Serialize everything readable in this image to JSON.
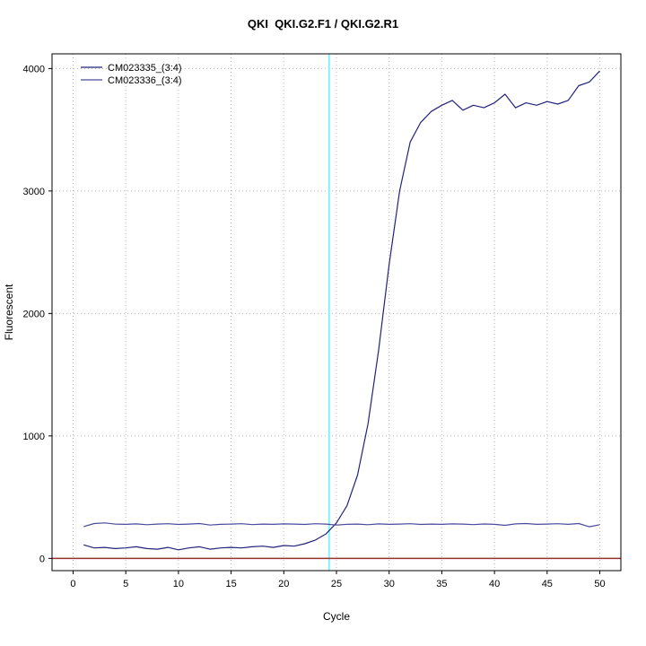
{
  "title": "QKI  QKI.G2.F1 / QKI.G2.R1",
  "chart_data": {
    "type": "line",
    "title": "QKI  QKI.G2.F1 / QKI.G2.R1",
    "xlabel": "Cycle",
    "ylabel": "Fluorescent",
    "xlim": [
      -2,
      52
    ],
    "ylim": [
      -100,
      4120
    ],
    "xticks": [
      0,
      5,
      10,
      15,
      20,
      25,
      30,
      35,
      40,
      45,
      50
    ],
    "yticks": [
      0,
      1000,
      2000,
      3000,
      4000
    ],
    "grid": true,
    "grid_color": "#b8b8b8",
    "border_color": "#000000",
    "legend_position": "top-left",
    "threshold_line": {
      "axis": "x",
      "value": 24.3,
      "color": "#7df3ff"
    },
    "baseline_line": {
      "axis": "y",
      "value": 0,
      "color": "#99312f"
    },
    "x": [
      1,
      2,
      3,
      4,
      5,
      6,
      7,
      8,
      9,
      10,
      11,
      12,
      13,
      14,
      15,
      16,
      17,
      18,
      19,
      20,
      21,
      22,
      23,
      24,
      25,
      26,
      27,
      28,
      29,
      30,
      31,
      32,
      33,
      34,
      35,
      36,
      37,
      38,
      39,
      40,
      41,
      42,
      43,
      44,
      45,
      46,
      47,
      48,
      49,
      50
    ],
    "series": [
      {
        "name": "CM023335_(3:4)",
        "color": "#23237a",
        "values": [
          110,
          85,
          90,
          80,
          85,
          95,
          80,
          75,
          90,
          70,
          85,
          95,
          75,
          85,
          90,
          85,
          95,
          100,
          90,
          105,
          100,
          120,
          150,
          200,
          290,
          430,
          680,
          1100,
          1700,
          2400,
          3000,
          3400,
          3560,
          3650,
          3700,
          3740,
          3660,
          3700,
          3680,
          3720,
          3790,
          3680,
          3720,
          3700,
          3730,
          3710,
          3740,
          3860,
          3890,
          3980
        ]
      },
      {
        "name": "CM023336_(3:4)",
        "color": "#4a4a9c",
        "values": [
          260,
          285,
          290,
          280,
          278,
          282,
          275,
          280,
          283,
          277,
          280,
          285,
          272,
          278,
          280,
          283,
          276,
          280,
          278,
          282,
          280,
          277,
          283,
          280,
          272,
          278,
          280,
          275,
          282,
          278,
          280,
          283,
          277,
          280,
          278,
          282,
          280,
          276,
          281,
          278,
          270,
          282,
          285,
          278,
          280,
          283,
          278,
          285,
          258,
          275
        ]
      }
    ]
  }
}
